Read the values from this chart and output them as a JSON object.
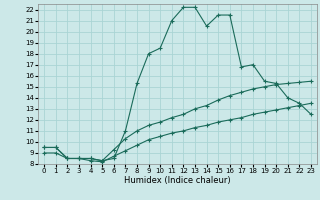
{
  "xlabel": "Humidex (Indice chaleur)",
  "bg_color": "#cce8e8",
  "grid_color": "#aad4d4",
  "line_color": "#1a6b5a",
  "xlim": [
    -0.5,
    23.5
  ],
  "ylim": [
    8,
    22.5
  ],
  "xticks": [
    0,
    1,
    2,
    3,
    4,
    5,
    6,
    7,
    8,
    9,
    10,
    11,
    12,
    13,
    14,
    15,
    16,
    17,
    18,
    19,
    20,
    21,
    22,
    23
  ],
  "yticks": [
    8,
    9,
    10,
    11,
    12,
    13,
    14,
    15,
    16,
    17,
    18,
    19,
    20,
    21,
    22
  ],
  "curve1_x": [
    0,
    1,
    2,
    3,
    4,
    5,
    6,
    7,
    8,
    9,
    10,
    11,
    12,
    13,
    14,
    15,
    16,
    17,
    18,
    19,
    20,
    21,
    22,
    23
  ],
  "curve1_y": [
    9.5,
    9.5,
    8.5,
    8.5,
    8.5,
    8.3,
    8.5,
    11.0,
    15.3,
    18.0,
    18.5,
    21.0,
    22.2,
    22.2,
    20.5,
    21.5,
    21.5,
    16.8,
    17.0,
    15.5,
    15.3,
    14.0,
    13.5,
    12.5
  ],
  "curve2_x": [
    0,
    1,
    2,
    3,
    4,
    5,
    6,
    7,
    8,
    9,
    10,
    11,
    12,
    13,
    14,
    15,
    16,
    17,
    18,
    19,
    20,
    21,
    22,
    23
  ],
  "curve2_y": [
    9.5,
    9.5,
    8.5,
    8.5,
    8.5,
    8.3,
    9.3,
    10.3,
    11.0,
    11.5,
    11.8,
    12.2,
    12.5,
    13.0,
    13.3,
    13.8,
    14.2,
    14.5,
    14.8,
    15.0,
    15.2,
    15.3,
    15.4,
    15.5
  ],
  "curve3_x": [
    0,
    1,
    2,
    3,
    4,
    5,
    6,
    7,
    8,
    9,
    10,
    11,
    12,
    13,
    14,
    15,
    16,
    17,
    18,
    19,
    20,
    21,
    22,
    23
  ],
  "curve3_y": [
    9.0,
    9.0,
    8.5,
    8.5,
    8.3,
    8.2,
    8.7,
    9.2,
    9.7,
    10.2,
    10.5,
    10.8,
    11.0,
    11.3,
    11.5,
    11.8,
    12.0,
    12.2,
    12.5,
    12.7,
    12.9,
    13.1,
    13.3,
    13.5
  ]
}
